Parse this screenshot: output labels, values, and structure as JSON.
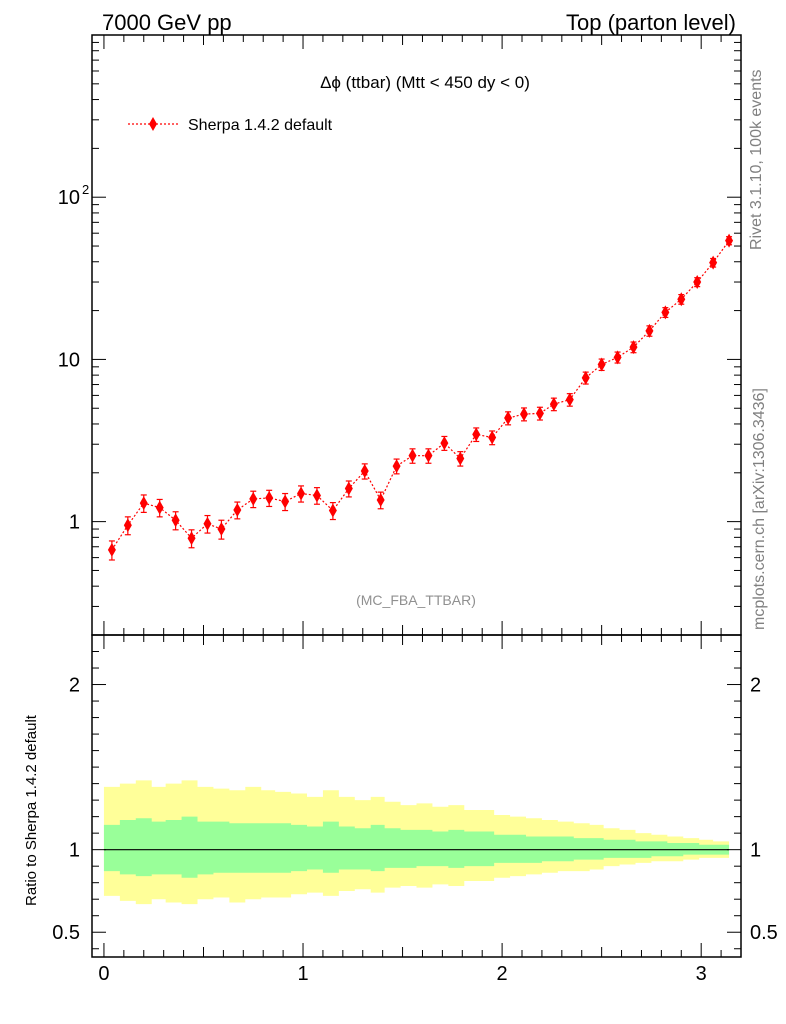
{
  "header": {
    "left": "7000 GeV pp",
    "right": "Top (parton level)"
  },
  "side_labels": {
    "rivet": "Rivet 3.1.10,  100k events",
    "mcplots": "mcplots.cern.ch [arXiv:1306.3436]"
  },
  "analysis_tag": "(MC_FBA_TTBAR)",
  "chart_data": [
    {
      "type": "line",
      "title": "Δϕ (ttbar) (Mtt < 450 dy < 0)",
      "yscale": "log",
      "xlim": [
        -0.06,
        3.2
      ],
      "ylim": [
        0.2,
        1000
      ],
      "y_tick_labels": [
        "1",
        "10",
        "10^2"
      ],
      "x_tick_labels": [],
      "grid": false,
      "legend_position": "top-left",
      "series": [
        {
          "name": "Sherpa 1.4.2 default",
          "color": "#ff0000",
          "marker": "diamond",
          "line_style": "dotted",
          "x": [
            0.04,
            0.12,
            0.2,
            0.28,
            0.36,
            0.44,
            0.52,
            0.59,
            0.67,
            0.75,
            0.83,
            0.91,
            0.99,
            1.07,
            1.15,
            1.23,
            1.31,
            1.39,
            1.47,
            1.55,
            1.63,
            1.71,
            1.79,
            1.87,
            1.95,
            2.03,
            2.11,
            2.19,
            2.26,
            2.34,
            2.42,
            2.5,
            2.58,
            2.66,
            2.74,
            2.82,
            2.9,
            2.98,
            3.06,
            3.14
          ],
          "y": [
            0.67,
            0.95,
            1.3,
            1.22,
            1.02,
            0.79,
            0.97,
            0.9,
            1.18,
            1.38,
            1.4,
            1.33,
            1.49,
            1.45,
            1.17,
            1.6,
            2.05,
            1.36,
            2.2,
            2.55,
            2.55,
            3.05,
            2.45,
            3.45,
            3.3,
            4.35,
            4.6,
            4.65,
            5.3,
            5.65,
            7.7,
            9.3,
            10.3,
            11.9,
            15.0,
            19.5,
            23.5,
            30.0,
            39.5,
            54.0
          ],
          "yerr": [
            0.09,
            0.12,
            0.16,
            0.15,
            0.13,
            0.1,
            0.12,
            0.12,
            0.14,
            0.16,
            0.16,
            0.16,
            0.17,
            0.17,
            0.14,
            0.18,
            0.22,
            0.16,
            0.23,
            0.26,
            0.26,
            0.3,
            0.25,
            0.33,
            0.32,
            0.4,
            0.42,
            0.42,
            0.47,
            0.5,
            0.65,
            0.75,
            0.8,
            0.9,
            1.1,
            1.35,
            1.6,
            1.9,
            2.4,
            3.1
          ]
        }
      ]
    },
    {
      "type": "area",
      "ylabel": "Ratio to Sherpa 1.4.2 default",
      "xlim": [
        -0.06,
        3.2
      ],
      "ylim": [
        0.35,
        2.3
      ],
      "x_tick_labels": [
        "0",
        "1",
        "2",
        "3"
      ],
      "y_tick_labels": [
        "0.5",
        "1",
        "2"
      ],
      "grid": false,
      "reference_line": 1,
      "band_colors": {
        "inner": "#99ff99",
        "outer": "#ffff99"
      },
      "x_edges": [
        0.0,
        0.08,
        0.16,
        0.24,
        0.31,
        0.39,
        0.47,
        0.55,
        0.63,
        0.71,
        0.79,
        0.86,
        0.94,
        1.02,
        1.1,
        1.18,
        1.26,
        1.34,
        1.41,
        1.49,
        1.57,
        1.65,
        1.73,
        1.81,
        1.89,
        1.96,
        2.04,
        2.12,
        2.2,
        2.28,
        2.36,
        2.44,
        2.51,
        2.59,
        2.67,
        2.75,
        2.83,
        2.91,
        2.99,
        3.06,
        3.14
      ],
      "inner_upper": [
        1.15,
        1.18,
        1.19,
        1.17,
        1.18,
        1.2,
        1.17,
        1.17,
        1.16,
        1.16,
        1.16,
        1.16,
        1.15,
        1.14,
        1.17,
        1.14,
        1.13,
        1.15,
        1.13,
        1.12,
        1.12,
        1.11,
        1.12,
        1.11,
        1.11,
        1.09,
        1.09,
        1.08,
        1.08,
        1.08,
        1.07,
        1.07,
        1.06,
        1.06,
        1.05,
        1.05,
        1.04,
        1.04,
        1.03,
        1.03
      ],
      "inner_lower": [
        0.87,
        0.85,
        0.84,
        0.85,
        0.85,
        0.83,
        0.85,
        0.86,
        0.86,
        0.86,
        0.86,
        0.86,
        0.87,
        0.88,
        0.86,
        0.88,
        0.88,
        0.87,
        0.89,
        0.89,
        0.9,
        0.9,
        0.89,
        0.9,
        0.9,
        0.92,
        0.92,
        0.92,
        0.93,
        0.93,
        0.94,
        0.94,
        0.95,
        0.95,
        0.95,
        0.96,
        0.96,
        0.97,
        0.97,
        0.97
      ],
      "outer_upper": [
        1.38,
        1.4,
        1.42,
        1.38,
        1.4,
        1.42,
        1.38,
        1.37,
        1.36,
        1.38,
        1.36,
        1.35,
        1.34,
        1.32,
        1.36,
        1.32,
        1.3,
        1.32,
        1.29,
        1.27,
        1.28,
        1.26,
        1.27,
        1.24,
        1.24,
        1.21,
        1.2,
        1.19,
        1.18,
        1.17,
        1.16,
        1.15,
        1.13,
        1.12,
        1.1,
        1.09,
        1.08,
        1.07,
        1.06,
        1.05
      ],
      "outer_lower": [
        0.72,
        0.69,
        0.67,
        0.7,
        0.68,
        0.67,
        0.7,
        0.71,
        0.68,
        0.7,
        0.71,
        0.71,
        0.73,
        0.74,
        0.72,
        0.75,
        0.76,
        0.74,
        0.77,
        0.78,
        0.77,
        0.79,
        0.78,
        0.81,
        0.81,
        0.83,
        0.84,
        0.85,
        0.86,
        0.87,
        0.87,
        0.88,
        0.9,
        0.91,
        0.92,
        0.93,
        0.93,
        0.94,
        0.95,
        0.95
      ]
    }
  ]
}
